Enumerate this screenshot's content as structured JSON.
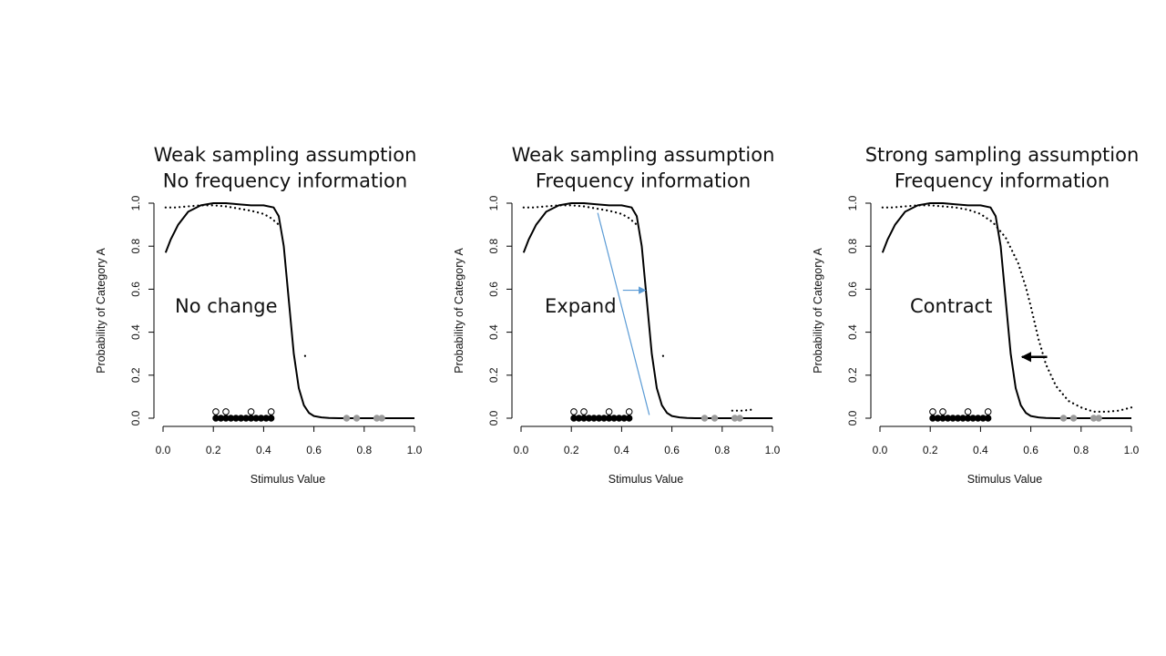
{
  "chart_data": [
    {
      "type": "line",
      "title": [
        "Weak sampling assumption",
        "No frequency information"
      ],
      "xlabel": "Stimulus Value",
      "ylabel": "Probability of Category A",
      "xlim": [
        0,
        1
      ],
      "ylim": [
        0,
        1
      ],
      "x_ticks": [
        "0.0",
        "0.2",
        "0.4",
        "0.6",
        "0.8",
        "1.0"
      ],
      "y_ticks": [
        "0.0",
        "0.2",
        "0.4",
        "0.6",
        "0.8",
        "1.0"
      ],
      "annotation": "No change",
      "series": [
        {
          "style": "solid",
          "x": [
            0.01,
            0.03,
            0.06,
            0.1,
            0.15,
            0.2,
            0.25,
            0.3,
            0.35,
            0.4,
            0.44,
            0.46,
            0.48,
            0.5,
            0.52,
            0.54,
            0.56,
            0.58,
            0.6,
            0.63,
            0.66,
            0.7,
            0.8,
            0.9,
            1.0
          ],
          "y": [
            0.77,
            0.83,
            0.9,
            0.96,
            0.99,
            1.0,
            1.0,
            0.995,
            0.99,
            0.99,
            0.98,
            0.94,
            0.8,
            0.55,
            0.3,
            0.14,
            0.06,
            0.025,
            0.01,
            0.004,
            0.001,
            0,
            0,
            0,
            0
          ]
        },
        {
          "style": "dotted",
          "x": [
            0.01,
            0.05,
            0.1,
            0.15,
            0.2,
            0.25,
            0.3,
            0.35,
            0.4,
            0.43,
            0.46
          ],
          "y": [
            0.98,
            0.98,
            0.985,
            0.99,
            0.99,
            0.985,
            0.975,
            0.965,
            0.95,
            0.93,
            0.9
          ]
        },
        {
          "style": "dotted",
          "x": [
            0.565,
            0.57
          ],
          "y": [
            0.29,
            0.28
          ]
        }
      ],
      "points": [
        {
          "x": [
            0.21,
            0.23,
            0.25,
            0.27,
            0.29,
            0.31,
            0.33,
            0.35,
            0.37,
            0.39,
            0.41,
            0.43
          ],
          "y": 0.0,
          "marker": "filled-black"
        },
        {
          "x": [
            0.21,
            0.25,
            0.35,
            0.43
          ],
          "y": 0.03,
          "marker": "open-circle"
        },
        {
          "x": [
            0.73,
            0.77,
            0.85,
            0.87
          ],
          "y": 0.0,
          "marker": "filled-gray"
        }
      ]
    },
    {
      "type": "line",
      "title": [
        "Weak sampling assumption",
        "Frequency information"
      ],
      "xlabel": "Stimulus Value",
      "ylabel": "Probability of Category A",
      "xlim": [
        0,
        1
      ],
      "ylim": [
        0,
        1
      ],
      "x_ticks": [
        "0.0",
        "0.2",
        "0.4",
        "0.6",
        "0.8",
        "1.0"
      ],
      "y_ticks": [
        "0.0",
        "0.2",
        "0.4",
        "0.6",
        "0.8",
        "1.0"
      ],
      "annotation": "Expand",
      "series": [
        {
          "style": "solid",
          "x": [
            0.01,
            0.03,
            0.06,
            0.1,
            0.15,
            0.2,
            0.25,
            0.3,
            0.35,
            0.4,
            0.44,
            0.46,
            0.48,
            0.5,
            0.52,
            0.54,
            0.56,
            0.58,
            0.6,
            0.63,
            0.66,
            0.7,
            0.8,
            0.9,
            1.0
          ],
          "y": [
            0.77,
            0.83,
            0.9,
            0.96,
            0.99,
            1.0,
            1.0,
            0.995,
            0.99,
            0.99,
            0.98,
            0.94,
            0.8,
            0.55,
            0.3,
            0.14,
            0.06,
            0.025,
            0.01,
            0.004,
            0.001,
            0,
            0,
            0,
            0
          ]
        },
        {
          "style": "dotted",
          "x": [
            0.01,
            0.05,
            0.1,
            0.15,
            0.2,
            0.25,
            0.3,
            0.35,
            0.4,
            0.43,
            0.46
          ],
          "y": [
            0.98,
            0.98,
            0.985,
            0.99,
            0.99,
            0.985,
            0.975,
            0.965,
            0.95,
            0.93,
            0.9
          ]
        },
        {
          "style": "dotted",
          "x": [
            0.565,
            0.57
          ],
          "y": [
            0.29,
            0.28
          ]
        },
        {
          "style": "dotted",
          "x": [
            0.84,
            0.88,
            0.92
          ],
          "y": [
            0.035,
            0.035,
            0.04
          ]
        }
      ],
      "points": [
        {
          "x": [
            0.21,
            0.23,
            0.25,
            0.27,
            0.29,
            0.31,
            0.33,
            0.35,
            0.37,
            0.39,
            0.41,
            0.43
          ],
          "y": 0.0,
          "marker": "filled-black"
        },
        {
          "x": [
            0.21,
            0.25,
            0.35,
            0.43
          ],
          "y": 0.03,
          "marker": "open-circle"
        },
        {
          "x": [
            0.73,
            0.77,
            0.85,
            0.87
          ],
          "y": 0.0,
          "marker": "filled-gray"
        }
      ],
      "overlays": [
        {
          "kind": "line",
          "color": "#5b9bd5",
          "x": [
            0.305,
            0.51
          ],
          "y": [
            0.955,
            0.015
          ]
        },
        {
          "kind": "arrow",
          "color": "#5b9bd5",
          "x": [
            0.405,
            0.495
          ],
          "y": [
            0.595,
            0.595
          ]
        }
      ]
    },
    {
      "type": "line",
      "title": [
        "Strong sampling assumption",
        "Frequency information"
      ],
      "xlabel": "Stimulus Value",
      "ylabel": "Probability of Category A",
      "xlim": [
        0,
        1
      ],
      "ylim": [
        0,
        1
      ],
      "x_ticks": [
        "0.0",
        "0.2",
        "0.4",
        "0.6",
        "0.8",
        "1.0"
      ],
      "y_ticks": [
        "0.0",
        "0.2",
        "0.4",
        "0.6",
        "0.8",
        "1.0"
      ],
      "annotation": "Contract",
      "series": [
        {
          "style": "solid",
          "x": [
            0.01,
            0.03,
            0.06,
            0.1,
            0.15,
            0.2,
            0.25,
            0.3,
            0.35,
            0.4,
            0.44,
            0.46,
            0.48,
            0.5,
            0.52,
            0.54,
            0.56,
            0.58,
            0.6,
            0.63,
            0.66,
            0.7,
            0.8,
            0.9,
            1.0
          ],
          "y": [
            0.77,
            0.83,
            0.9,
            0.96,
            0.99,
            1.0,
            1.0,
            0.995,
            0.99,
            0.99,
            0.98,
            0.94,
            0.8,
            0.55,
            0.3,
            0.14,
            0.06,
            0.025,
            0.01,
            0.004,
            0.001,
            0,
            0,
            0,
            0
          ]
        },
        {
          "style": "dotted",
          "x": [
            0.01,
            0.05,
            0.1,
            0.15,
            0.2,
            0.25,
            0.3,
            0.35,
            0.4,
            0.45,
            0.5,
            0.55,
            0.58,
            0.6,
            0.63,
            0.66,
            0.7,
            0.75,
            0.8,
            0.85,
            0.9,
            0.95,
            1.0
          ],
          "y": [
            0.98,
            0.98,
            0.985,
            0.99,
            0.99,
            0.985,
            0.98,
            0.97,
            0.95,
            0.91,
            0.84,
            0.72,
            0.61,
            0.52,
            0.37,
            0.25,
            0.15,
            0.08,
            0.05,
            0.03,
            0.03,
            0.035,
            0.05
          ]
        }
      ],
      "points": [
        {
          "x": [
            0.21,
            0.23,
            0.25,
            0.27,
            0.29,
            0.31,
            0.33,
            0.35,
            0.37,
            0.39,
            0.41,
            0.43
          ],
          "y": 0.0,
          "marker": "filled-black"
        },
        {
          "x": [
            0.21,
            0.25,
            0.35,
            0.43
          ],
          "y": 0.03,
          "marker": "open-circle"
        },
        {
          "x": [
            0.73,
            0.77,
            0.85,
            0.87
          ],
          "y": 0.0,
          "marker": "filled-gray"
        }
      ],
      "overlays": [
        {
          "kind": "arrow",
          "color": "#000000",
          "x": [
            0.665,
            0.565
          ],
          "y": [
            0.285,
            0.285
          ]
        }
      ]
    }
  ]
}
